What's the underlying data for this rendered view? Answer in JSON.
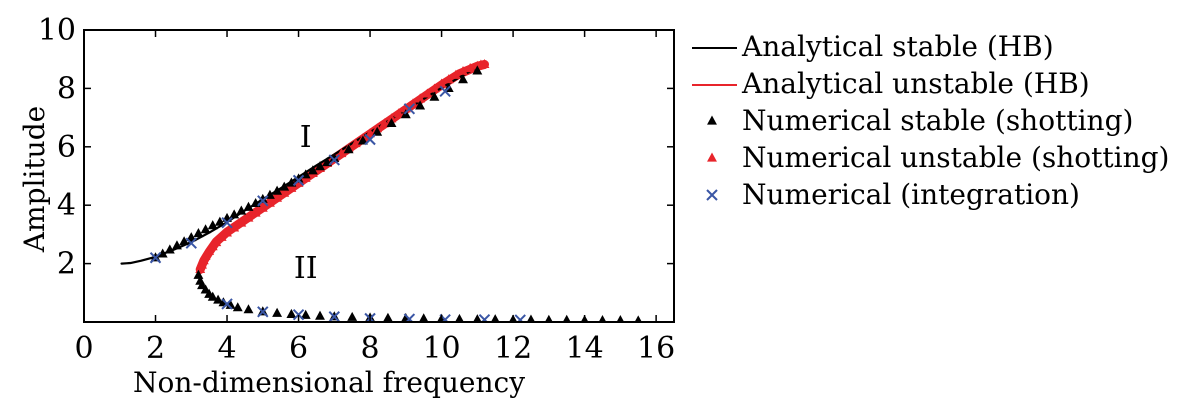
{
  "chart_data": {
    "type": "scatter",
    "xlabel": "Non-dimensional frequency",
    "ylabel": "Amplitude",
    "xlim": [
      0,
      16.5
    ],
    "ylim": [
      0,
      10
    ],
    "xticks": [
      0,
      2,
      4,
      6,
      8,
      10,
      12,
      14,
      16
    ],
    "yticks": [
      2,
      4,
      6,
      8,
      10
    ],
    "grid": false,
    "legend_position": "right",
    "colors": {
      "black": "#000000",
      "red": "#e8242b",
      "blue": "#3a56a5"
    },
    "annotations": [
      {
        "text": "I",
        "x": 6.2,
        "y": 6.0
      },
      {
        "text": "II",
        "x": 6.2,
        "y": 1.5
      }
    ],
    "series": [
      {
        "name": "Analytical stable (HB)",
        "style": "line",
        "color": "#000000",
        "x": [
          1.05,
          1.3,
          1.6,
          1.9,
          2.2,
          2.5,
          2.8,
          3.1,
          3.5,
          4.0,
          4.5,
          5.0,
          5.5,
          6.0,
          6.5,
          7.0,
          7.5,
          8.0,
          8.5,
          9.0,
          9.5,
          10.0,
          10.5,
          11.0,
          11.2
        ],
        "y": [
          2.0,
          2.02,
          2.1,
          2.2,
          2.33,
          2.47,
          2.63,
          2.8,
          3.06,
          3.42,
          3.82,
          4.2,
          4.58,
          4.97,
          5.36,
          5.74,
          6.12,
          6.5,
          6.88,
          7.26,
          7.64,
          8.02,
          8.38,
          8.72,
          8.82
        ]
      },
      {
        "name": "Analytical unstable (HB)",
        "style": "line",
        "color": "#e8242b",
        "x": [
          3.25,
          3.35,
          3.5,
          3.7,
          4.0,
          4.5,
          5.0,
          5.5,
          6.0,
          6.5,
          7.0,
          7.5,
          8.0,
          8.5,
          9.0,
          9.5,
          10.0,
          10.5,
          11.0,
          11.2
        ],
        "y": [
          1.8,
          2.1,
          2.4,
          2.75,
          3.08,
          3.5,
          3.92,
          4.34,
          4.76,
          5.18,
          5.6,
          6.02,
          6.44,
          6.86,
          7.28,
          7.7,
          8.12,
          8.5,
          8.76,
          8.82
        ]
      },
      {
        "name": "Numerical stable (shotting)",
        "style": "marker",
        "marker": "triangle",
        "color": "#000000",
        "x": [
          2.0,
          2.2,
          2.4,
          2.6,
          2.8,
          3.0,
          3.2,
          3.4,
          3.6,
          3.8,
          4.0,
          4.2,
          4.4,
          4.6,
          4.8,
          5.0,
          5.2,
          5.4,
          5.6,
          5.8,
          6.0,
          6.2,
          6.4,
          6.6,
          6.8,
          7.0,
          7.4,
          7.8,
          8.2,
          8.6,
          9.0,
          9.4,
          9.8,
          10.2,
          10.6,
          11.0,
          3.2,
          3.25,
          3.3,
          3.4,
          3.5,
          3.6,
          3.75,
          3.9,
          4.1,
          4.3,
          4.6,
          5.0,
          5.4,
          5.8,
          6.2,
          6.6,
          7.0,
          7.5,
          8.0,
          8.5,
          9.0,
          9.5,
          10.0,
          10.5,
          11.0,
          11.5,
          12.0,
          12.5,
          13.0,
          13.5,
          14.0,
          14.5,
          15.0,
          15.5
        ],
        "y": [
          2.2,
          2.33,
          2.47,
          2.61,
          2.75,
          2.89,
          3.03,
          3.16,
          3.3,
          3.42,
          3.55,
          3.67,
          3.8,
          3.93,
          4.06,
          4.2,
          4.34,
          4.48,
          4.62,
          4.76,
          4.9,
          5.04,
          5.18,
          5.32,
          5.46,
          5.6,
          5.9,
          6.2,
          6.5,
          6.8,
          7.1,
          7.4,
          7.7,
          8.0,
          8.3,
          8.6,
          1.6,
          1.4,
          1.25,
          1.1,
          0.95,
          0.85,
          0.75,
          0.66,
          0.57,
          0.49,
          0.42,
          0.35,
          0.3,
          0.26,
          0.23,
          0.2,
          0.18,
          0.16,
          0.14,
          0.13,
          0.12,
          0.11,
          0.1,
          0.09,
          0.08,
          0.08,
          0.07,
          0.07,
          0.06,
          0.06,
          0.05,
          0.05,
          0.05,
          0.04
        ]
      },
      {
        "name": "Numerical unstable (shotting)",
        "style": "marker",
        "marker": "triangle",
        "color": "#e8242b",
        "x": [
          3.25,
          3.3,
          3.35,
          3.4,
          3.5,
          3.6,
          3.7,
          3.85,
          4.0,
          4.2,
          4.4,
          4.6,
          4.8,
          5.0,
          5.2,
          5.4,
          5.6,
          5.8,
          6.0,
          6.2,
          6.4,
          6.6,
          6.8,
          7.0,
          7.2,
          7.4,
          7.6,
          7.8,
          8.0,
          8.2,
          8.4,
          8.6,
          8.8,
          9.0,
          9.2,
          9.4,
          9.6,
          9.8,
          10.0,
          10.2,
          10.4,
          10.6,
          10.8,
          11.0,
          11.1,
          11.2
        ],
        "y": [
          1.8,
          1.95,
          2.1,
          2.25,
          2.42,
          2.58,
          2.72,
          2.9,
          3.05,
          3.22,
          3.39,
          3.56,
          3.73,
          3.9,
          4.07,
          4.24,
          4.41,
          4.58,
          4.75,
          4.92,
          5.09,
          5.26,
          5.43,
          5.6,
          5.77,
          5.94,
          6.11,
          6.28,
          6.45,
          6.62,
          6.79,
          6.96,
          7.13,
          7.3,
          7.47,
          7.64,
          7.81,
          7.98,
          8.15,
          8.3,
          8.45,
          8.58,
          8.68,
          8.76,
          8.8,
          8.82
        ]
      },
      {
        "name": "Numerical (integration)",
        "style": "marker",
        "marker": "x",
        "color": "#3a56a5",
        "x": [
          2.0,
          3.0,
          4.0,
          5.0,
          6.0,
          7.0,
          8.0,
          9.1,
          10.1,
          4.0,
          5.0,
          6.0,
          7.0,
          8.0,
          9.1,
          10.1,
          11.2,
          12.2
        ],
        "y": [
          2.2,
          2.7,
          3.4,
          4.15,
          4.85,
          5.55,
          6.25,
          7.3,
          7.9,
          0.62,
          0.35,
          0.25,
          0.18,
          0.12,
          0.1,
          0.08,
          0.08,
          0.07
        ]
      }
    ]
  }
}
